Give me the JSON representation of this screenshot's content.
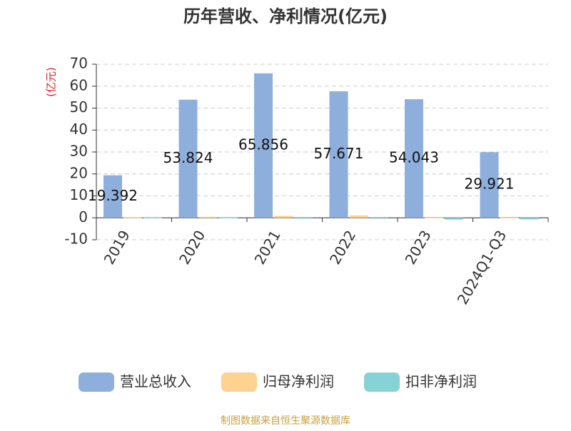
{
  "chart_data": {
    "type": "bar",
    "title": "历年营收、净利情况(亿元)",
    "y_label": "(亿元)",
    "source": "制图数据来自恒生聚源数据库",
    "categories": [
      "2019",
      "2020",
      "2021",
      "2022",
      "2023",
      "2024Q1-Q3"
    ],
    "series": [
      {
        "name": "营业总收入",
        "color": "#8eaedb",
        "values": [
          19.392,
          53.824,
          65.856,
          57.671,
          54.043,
          29.921
        ],
        "labels": true
      },
      {
        "name": "归母净利润",
        "color": "#fdd38f",
        "values": [
          0.2,
          -0.3,
          0.9,
          1.1,
          0.1,
          0.1
        ]
      },
      {
        "name": "扣非净利润",
        "color": "#86d3d6",
        "values": [
          0.1,
          0.1,
          -0.3,
          -0.2,
          -0.8,
          -0.7
        ]
      }
    ],
    "ylim": [
      -10,
      70
    ],
    "yticks": [
      -10,
      0,
      10,
      20,
      30,
      40,
      50,
      60,
      70
    ],
    "grid": true,
    "legend": "bottom"
  }
}
